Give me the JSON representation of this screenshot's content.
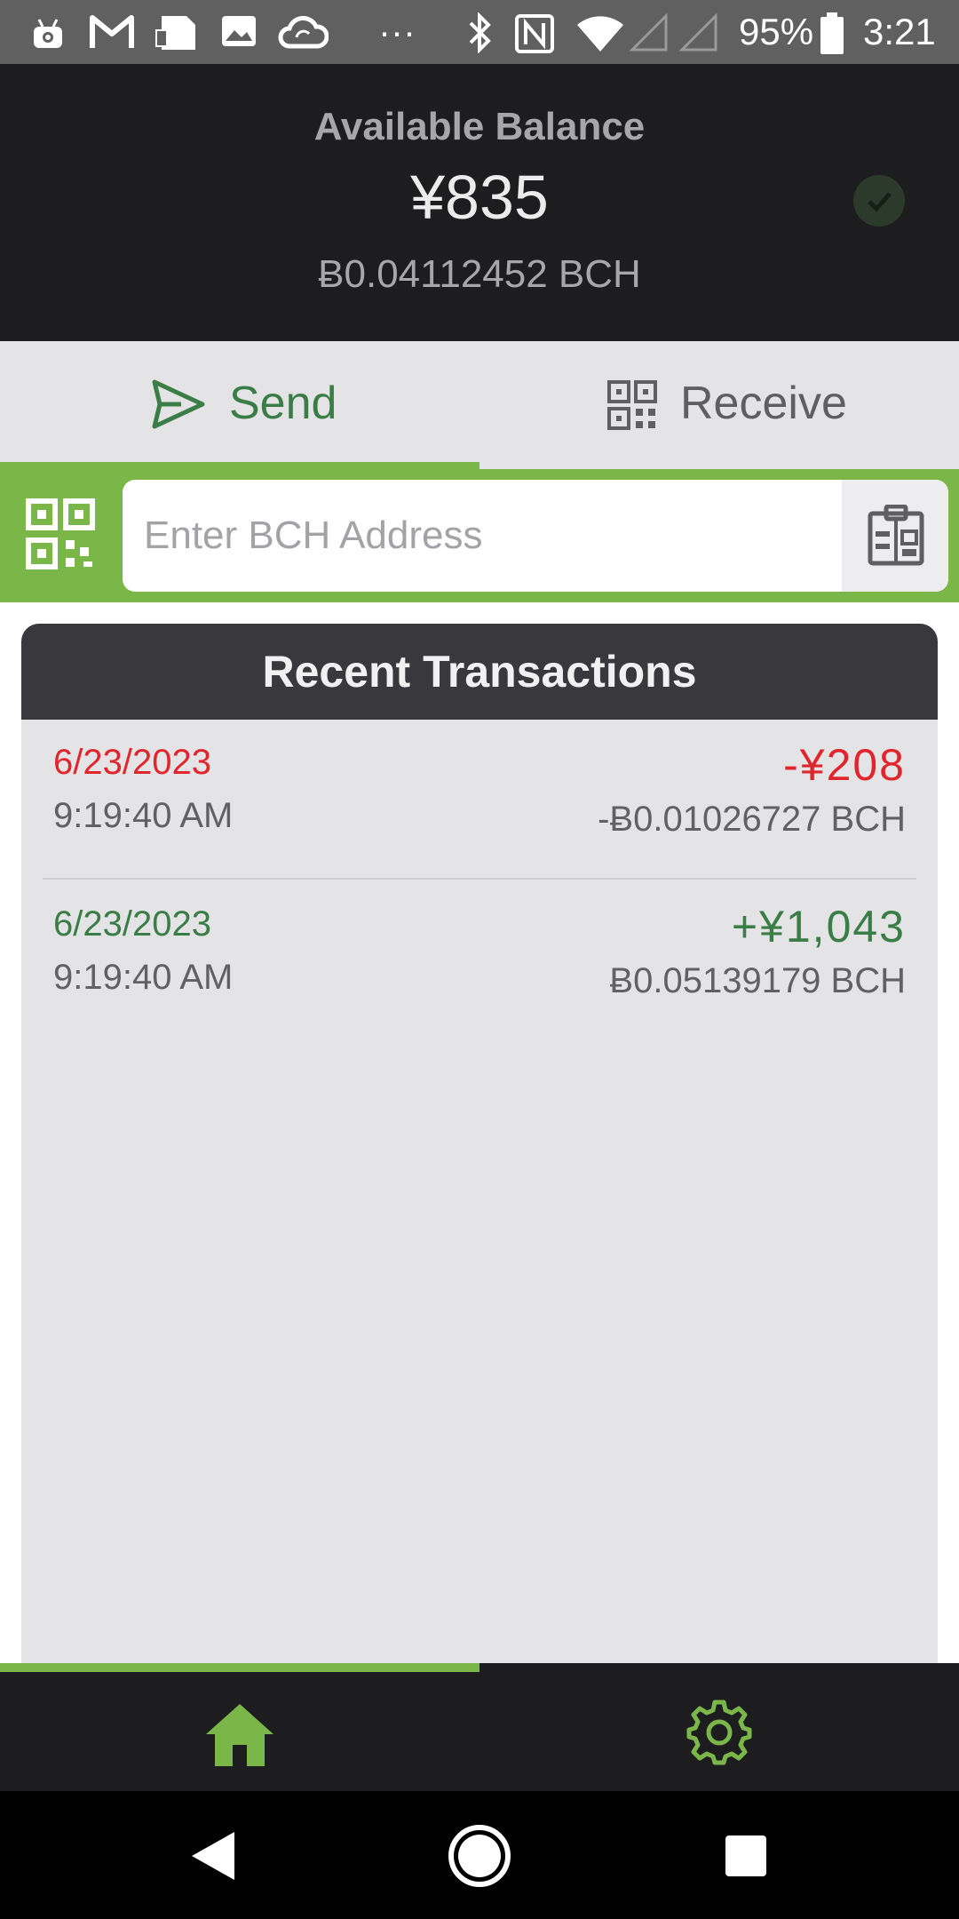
{
  "status_bar": {
    "battery": "95%",
    "time": "3:21",
    "more": "···",
    "icons": [
      "android-debug-icon",
      "gmail-icon",
      "notes-icon",
      "image-icon",
      "cloud-sync-icon",
      "bluetooth-icon",
      "nfc-icon",
      "wifi-icon",
      "signal-icon",
      "signal-icon",
      "battery-icon"
    ]
  },
  "balance": {
    "label": "Available Balance",
    "fiat": "¥835",
    "crypto": "Ƀ0.04112452 BCH",
    "status_icon": "check-circle-icon"
  },
  "tabs": [
    {
      "label": "Send",
      "icon": "send-icon",
      "active": true
    },
    {
      "label": "Receive",
      "icon": "qr-code-icon",
      "active": false
    }
  ],
  "address": {
    "placeholder": "Enter BCH Address",
    "value": "",
    "scan_icon": "qr-scan-icon",
    "paste_icon": "clipboard-icon"
  },
  "transactions": {
    "title": "Recent Transactions",
    "items": [
      {
        "date": "6/23/2023",
        "time": "9:19:40 AM",
        "fiat": "-¥208",
        "crypto": "-Ƀ0.01026727 BCH",
        "direction": "sent"
      },
      {
        "date": "6/23/2023",
        "time": "9:19:40 AM",
        "fiat": "+¥1,043",
        "crypto": "Ƀ0.05139179 BCH",
        "direction": "received"
      }
    ]
  },
  "bottom_nav": {
    "items": [
      {
        "icon": "home-icon",
        "active": true
      },
      {
        "icon": "gear-icon",
        "active": false
      }
    ]
  },
  "colors": {
    "accent": "#7ab648",
    "positive": "#3b7d46",
    "negative": "#e0262c",
    "header_bg": "#1d1d1f"
  }
}
